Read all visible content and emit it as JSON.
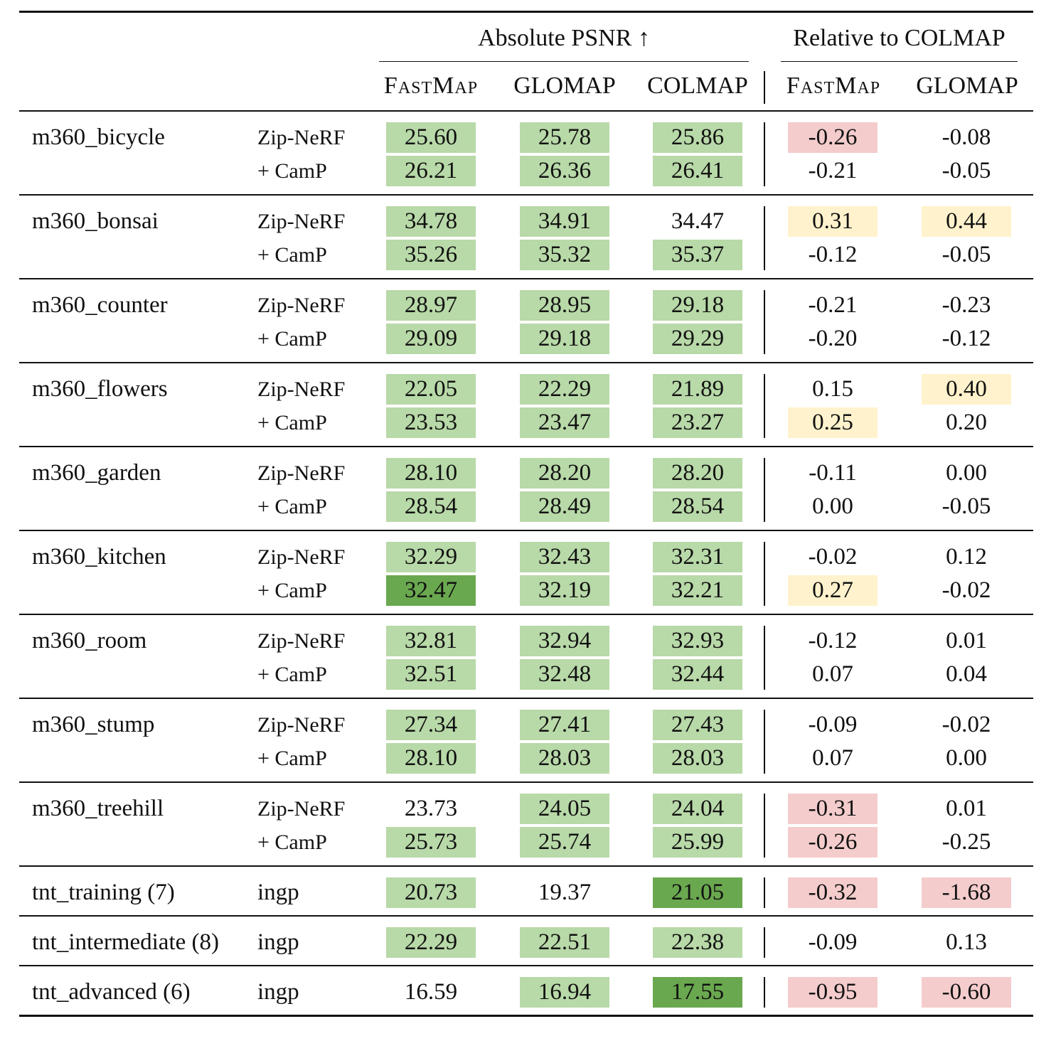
{
  "header": {
    "group_absolute": "Absolute PSNR ↑",
    "group_relative": "Relative to COLMAP",
    "columns": [
      "FastMap",
      "GLOMAP",
      "COLMAP",
      "FastMap",
      "GLOMAP"
    ]
  },
  "colors": {
    "green_light": "#b8d9a8",
    "green_dark": "#6aa84f",
    "red": "#f4cccc",
    "yellow": "#fff2cc"
  },
  "groups": [
    {
      "scene": "m360_bicycle",
      "rows": [
        {
          "method": "Zip-NeRF",
          "values": [
            "25.60",
            "25.78",
            "25.86",
            "-0.26",
            "-0.08"
          ],
          "hl": [
            "g1",
            "g1",
            "g1",
            "red",
            ""
          ]
        },
        {
          "method": "+ CamP",
          "values": [
            "26.21",
            "26.36",
            "26.41",
            "-0.21",
            "-0.05"
          ],
          "hl": [
            "g1",
            "g1",
            "g1",
            "",
            ""
          ]
        }
      ]
    },
    {
      "scene": "m360_bonsai",
      "rows": [
        {
          "method": "Zip-NeRF",
          "values": [
            "34.78",
            "34.91",
            "34.47",
            "0.31",
            "0.44"
          ],
          "hl": [
            "g1",
            "g1",
            "",
            "yel",
            "yel"
          ]
        },
        {
          "method": "+ CamP",
          "values": [
            "35.26",
            "35.32",
            "35.37",
            "-0.12",
            "-0.05"
          ],
          "hl": [
            "g1",
            "g1",
            "g1",
            "",
            ""
          ]
        }
      ]
    },
    {
      "scene": "m360_counter",
      "rows": [
        {
          "method": "Zip-NeRF",
          "values": [
            "28.97",
            "28.95",
            "29.18",
            "-0.21",
            "-0.23"
          ],
          "hl": [
            "g1",
            "g1",
            "g1",
            "",
            ""
          ]
        },
        {
          "method": "+ CamP",
          "values": [
            "29.09",
            "29.18",
            "29.29",
            "-0.20",
            "-0.12"
          ],
          "hl": [
            "g1",
            "g1",
            "g1",
            "",
            ""
          ]
        }
      ]
    },
    {
      "scene": "m360_flowers",
      "rows": [
        {
          "method": "Zip-NeRF",
          "values": [
            "22.05",
            "22.29",
            "21.89",
            "0.15",
            "0.40"
          ],
          "hl": [
            "g1",
            "g1",
            "g1",
            "",
            "yel"
          ]
        },
        {
          "method": "+ CamP",
          "values": [
            "23.53",
            "23.47",
            "23.27",
            "0.25",
            "0.20"
          ],
          "hl": [
            "g1",
            "g1",
            "g1",
            "yel",
            ""
          ]
        }
      ]
    },
    {
      "scene": "m360_garden",
      "rows": [
        {
          "method": "Zip-NeRF",
          "values": [
            "28.10",
            "28.20",
            "28.20",
            "-0.11",
            "0.00"
          ],
          "hl": [
            "g1",
            "g1",
            "g1",
            "",
            ""
          ]
        },
        {
          "method": "+ CamP",
          "values": [
            "28.54",
            "28.49",
            "28.54",
            "0.00",
            "-0.05"
          ],
          "hl": [
            "g1",
            "g1",
            "g1",
            "",
            ""
          ]
        }
      ]
    },
    {
      "scene": "m360_kitchen",
      "rows": [
        {
          "method": "Zip-NeRF",
          "values": [
            "32.29",
            "32.43",
            "32.31",
            "-0.02",
            "0.12"
          ],
          "hl": [
            "g1",
            "g1",
            "g1",
            "",
            ""
          ]
        },
        {
          "method": "+ CamP",
          "values": [
            "32.47",
            "32.19",
            "32.21",
            "0.27",
            "-0.02"
          ],
          "hl": [
            "g2",
            "g1",
            "g1",
            "yel",
            ""
          ]
        }
      ]
    },
    {
      "scene": "m360_room",
      "rows": [
        {
          "method": "Zip-NeRF",
          "values": [
            "32.81",
            "32.94",
            "32.93",
            "-0.12",
            "0.01"
          ],
          "hl": [
            "g1",
            "g1",
            "g1",
            "",
            ""
          ]
        },
        {
          "method": "+ CamP",
          "values": [
            "32.51",
            "32.48",
            "32.44",
            "0.07",
            "0.04"
          ],
          "hl": [
            "g1",
            "g1",
            "g1",
            "",
            ""
          ]
        }
      ]
    },
    {
      "scene": "m360_stump",
      "rows": [
        {
          "method": "Zip-NeRF",
          "values": [
            "27.34",
            "27.41",
            "27.43",
            "-0.09",
            "-0.02"
          ],
          "hl": [
            "g1",
            "g1",
            "g1",
            "",
            ""
          ]
        },
        {
          "method": "+ CamP",
          "values": [
            "28.10",
            "28.03",
            "28.03",
            "0.07",
            "0.00"
          ],
          "hl": [
            "g1",
            "g1",
            "g1",
            "",
            ""
          ]
        }
      ]
    },
    {
      "scene": "m360_treehill",
      "rows": [
        {
          "method": "Zip-NeRF",
          "values": [
            "23.73",
            "24.05",
            "24.04",
            "-0.31",
            "0.01"
          ],
          "hl": [
            "",
            "g1",
            "g1",
            "red",
            ""
          ]
        },
        {
          "method": "+ CamP",
          "values": [
            "25.73",
            "25.74",
            "25.99",
            "-0.26",
            "-0.25"
          ],
          "hl": [
            "g1",
            "g1",
            "g1",
            "red",
            ""
          ]
        }
      ]
    },
    {
      "scene": "tnt_training (7)",
      "rows": [
        {
          "method": "ingp",
          "values": [
            "20.73",
            "19.37",
            "21.05",
            "-0.32",
            "-1.68"
          ],
          "hl": [
            "g1",
            "",
            "g2",
            "red",
            "red"
          ]
        }
      ]
    },
    {
      "scene": "tnt_intermediate (8)",
      "rows": [
        {
          "method": "ingp",
          "values": [
            "22.29",
            "22.51",
            "22.38",
            "-0.09",
            "0.13"
          ],
          "hl": [
            "g1",
            "g1",
            "g1",
            "",
            ""
          ]
        }
      ]
    },
    {
      "scene": "tnt_advanced (6)",
      "rows": [
        {
          "method": "ingp",
          "values": [
            "16.59",
            "16.94",
            "17.55",
            "-0.95",
            "-0.60"
          ],
          "hl": [
            "",
            "g1",
            "g2",
            "red",
            "red"
          ]
        }
      ]
    }
  ]
}
